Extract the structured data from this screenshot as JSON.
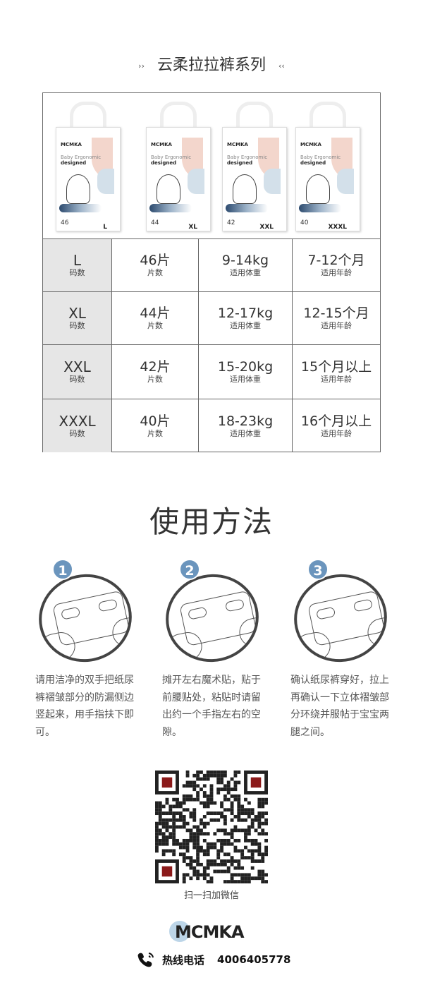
{
  "series_title": "云柔拉拉裤系列",
  "arrow_left": "››",
  "arrow_right": "‹‹",
  "packs": [
    {
      "brand": "MCMKA",
      "line1": "Baby Ergonomic",
      "line2": "designed",
      "count": "46",
      "size": "L"
    },
    {
      "brand": "MCMKA",
      "line1": "Baby Ergonomic",
      "line2": "designed",
      "count": "44",
      "size": "XL"
    },
    {
      "brand": "MCMKA",
      "line1": "Baby Ergonomic",
      "line2": "designed",
      "count": "42",
      "size": "XXL"
    },
    {
      "brand": "MCMKA",
      "line1": "Baby Ergonomic",
      "line2": "designed",
      "count": "40",
      "size": "XXXL"
    }
  ],
  "table": {
    "rows": [
      {
        "size": "L",
        "size_label": "码数",
        "pieces": "46片",
        "pieces_label": "片数",
        "weight": "9-14kg",
        "weight_label": "适用体重",
        "age": "7-12个月",
        "age_label": "适用年龄"
      },
      {
        "size": "XL",
        "size_label": "码数",
        "pieces": "44片",
        "pieces_label": "片数",
        "weight": "12-17kg",
        "weight_label": "适用体重",
        "age": "12-15个月",
        "age_label": "适用年龄"
      },
      {
        "size": "XXL",
        "size_label": "码数",
        "pieces": "42片",
        "pieces_label": "片数",
        "weight": "15-20kg",
        "weight_label": "适用体重",
        "age": "15个月以上",
        "age_label": "适用年龄"
      },
      {
        "size": "XXXL",
        "size_label": "码数",
        "pieces": "40片",
        "pieces_label": "片数",
        "weight": "18-23kg",
        "weight_label": "适用体重",
        "age": "16个月以上",
        "age_label": "适用年龄"
      }
    ]
  },
  "usage_title": "使用方法",
  "steps": [
    {
      "num": "1",
      "text": "请用洁净的双手把纸尿裤褶皱部分的防漏侧边竖起来，用手指扶下即可。"
    },
    {
      "num": "2",
      "text": "摊开左右魔术贴，贴于前腰贴处，粘贴时请留出约一个手指左右的空隙。"
    },
    {
      "num": "3",
      "text": "确认纸尿裤穿好，拉上再确认一下立体褶皱部分环绕并服帖于宝宝两腿之间。"
    }
  ],
  "qr_caption": "扫一扫加微信",
  "footer": {
    "logo": "MCMKA",
    "hotline_label": "热线电话",
    "hotline": "4006405778"
  },
  "colors": {
    "accent": "#6b95bd",
    "table_header_bg": "#e6e6e6",
    "qr_marker": "#8b1a1a"
  }
}
